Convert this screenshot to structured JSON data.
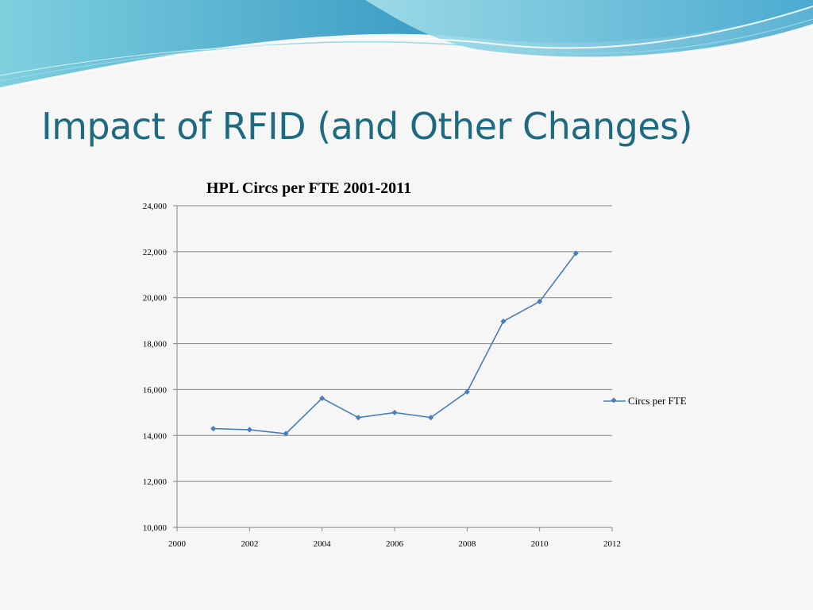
{
  "slide": {
    "title": "Impact of RFID (and Other Changes)"
  },
  "colors": {
    "title": "#1e6a80",
    "series": "#4a7ebb",
    "gridline": "#868686",
    "background": "#f6f6f6"
  },
  "chart_data": {
    "type": "line",
    "title": "HPL Circs per FTE 2001-2011",
    "xlabel": "",
    "ylabel": "",
    "xlim": [
      2000,
      2012
    ],
    "ylim": [
      10000,
      24000
    ],
    "x_ticks": [
      2000,
      2002,
      2004,
      2006,
      2008,
      2010,
      2012
    ],
    "y_ticks": [
      10000,
      12000,
      14000,
      16000,
      18000,
      20000,
      22000,
      24000
    ],
    "x_tick_labels": [
      "2000",
      "2002",
      "2004",
      "2006",
      "2008",
      "2010",
      "2012"
    ],
    "y_tick_labels": [
      "10,000",
      "12,000",
      "14,000",
      "16,000",
      "18,000",
      "20,000",
      "22,000",
      "24,000"
    ],
    "grid": "horizontal",
    "legend_position": "right",
    "series": [
      {
        "name": "Circs per FTE",
        "marker": "diamond",
        "x": [
          2001,
          2002,
          2003,
          2004,
          2005,
          2006,
          2007,
          2008,
          2009,
          2010,
          2011
        ],
        "y": [
          14300,
          14250,
          14080,
          15620,
          14780,
          15000,
          14780,
          15900,
          18970,
          19830,
          21930
        ]
      }
    ]
  }
}
